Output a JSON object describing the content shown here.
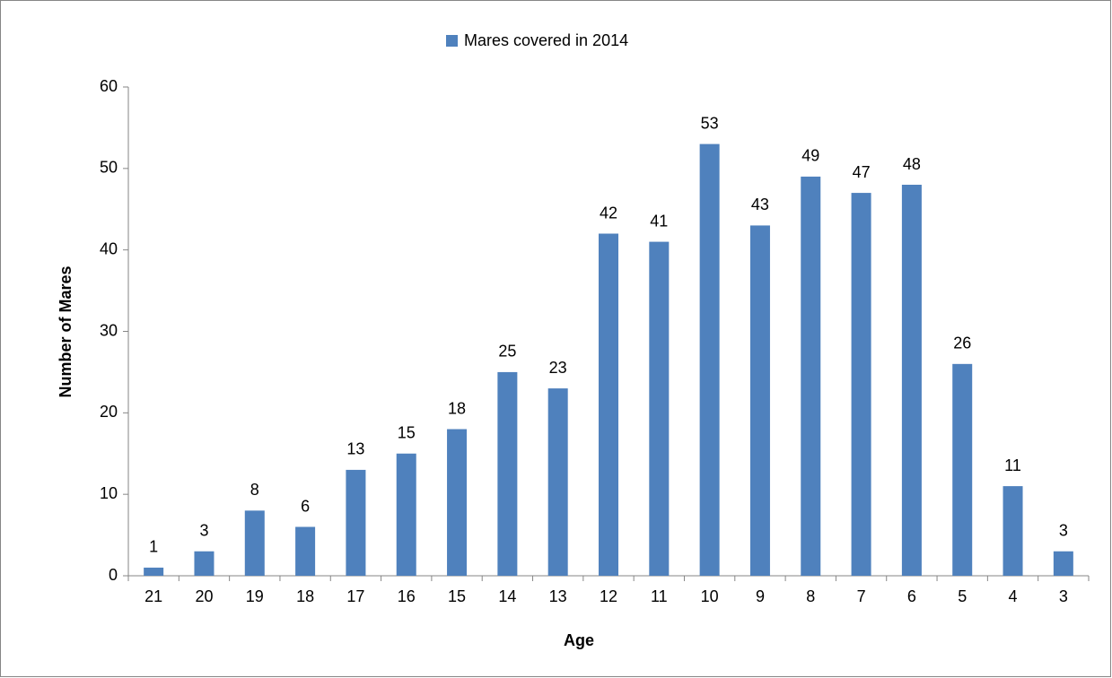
{
  "chart_data": {
    "type": "bar",
    "categories": [
      "21",
      "20",
      "19",
      "18",
      "17",
      "16",
      "15",
      "14",
      "13",
      "12",
      "11",
      "10",
      "9",
      "8",
      "7",
      "6",
      "5",
      "4",
      "3"
    ],
    "series": [
      {
        "name": "Mares covered in 2014",
        "color": "#4f81bd",
        "values": [
          1,
          3,
          8,
          6,
          13,
          15,
          18,
          25,
          23,
          42,
          41,
          53,
          43,
          49,
          47,
          48,
          26,
          11,
          3
        ]
      }
    ],
    "ylim": [
      0,
      60
    ],
    "yticks": [
      0,
      10,
      20,
      30,
      40,
      50,
      60
    ],
    "x_label": "Age",
    "y_label": "Number of Mares",
    "grid": false,
    "legend": "top"
  }
}
